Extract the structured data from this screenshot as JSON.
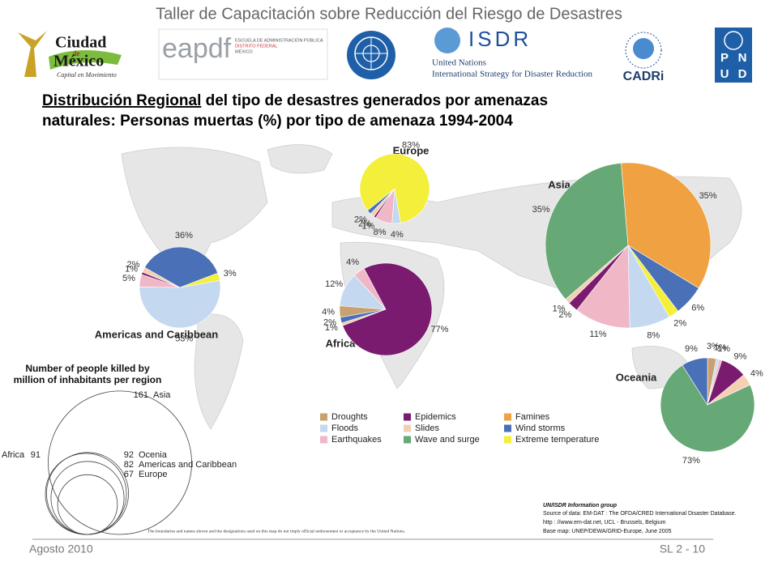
{
  "header": {
    "workshop": "Taller de Capacitación sobre Reducción del Riesgo de Desastres",
    "logos": {
      "ciudad": "Ciudad",
      "de": "de",
      "mexico": "México",
      "capital": "Capital en Movimiento",
      "eapdf": "eapdf",
      "eapdf_line1": "ESCUELA DE ADMINISTRACIÓN PÚBLICA",
      "eapdf_line2": "DISTRITO FEDERAL",
      "eapdf_line3": "MÉXICO",
      "isdr": "ISDR",
      "un": "United Nations",
      "isdr_full": "International Strategy for Disaster Reduction",
      "cadri": "CADRi",
      "cadri_ring": "CAPACITY FOR DISASTER REDUCTION INITIATIVE",
      "pnud": [
        "P",
        "N",
        "U",
        "D"
      ]
    },
    "title_underlined": "Distribución Regional",
    "title_rest": " del tipo de desastres generados por amenazas",
    "title_line2": "naturales: Personas muertas (%) por tipo de amenaza 1994-2004"
  },
  "legend": {
    "categories": [
      "Droughts",
      "Floods",
      "Earthquakes",
      "Epidemics",
      "Slides",
      "Wave and surge",
      "Famines",
      "Wind storms",
      "Extreme temperature"
    ],
    "colors": [
      "#c9a06f",
      "#c4d9f0",
      "#f0b7c6",
      "#7a1b6f",
      "#f4cfb0",
      "#66a876",
      "#f0a242",
      "#4a70b8",
      "#f4ef3a"
    ]
  },
  "chart_data": [
    {
      "type": "pie",
      "title": "Europe",
      "values": [
        null,
        4,
        8,
        1,
        2,
        null,
        null,
        2,
        83
      ],
      "value_labels": [
        null,
        "4%",
        "8%",
        "1%",
        "2%",
        null,
        null,
        "2%",
        "83%"
      ]
    },
    {
      "type": "pie",
      "title": "Asia",
      "values": [
        null,
        8,
        11,
        2,
        1,
        35,
        35,
        6,
        2
      ],
      "value_labels": [
        null,
        "8%",
        "11%",
        "2%",
        "1%",
        "35%",
        "35%",
        "6%",
        "2%"
      ]
    },
    {
      "type": "pie",
      "title": "Americas and Caribbean",
      "values": [
        null,
        53,
        5,
        1,
        2,
        null,
        null,
        36,
        3
      ],
      "value_labels": [
        null,
        "53%",
        "5%",
        "1%",
        "2%",
        null,
        null,
        "36%",
        "3%"
      ]
    },
    {
      "type": "pie",
      "title": "Africa",
      "values": [
        4,
        12,
        4,
        77,
        1,
        null,
        null,
        2,
        null
      ],
      "value_labels": [
        "4%",
        "12%",
        "4%",
        "77%",
        "1%",
        null,
        null,
        "2%",
        null
      ]
    },
    {
      "type": "pie",
      "title": "Oceania",
      "values": [
        3,
        1,
        1,
        9,
        4,
        73,
        null,
        9,
        null
      ],
      "value_labels": [
        "3%",
        "1%",
        "1%",
        "9%",
        "4%",
        "73%",
        null,
        "9%",
        null
      ]
    },
    {
      "type": "circles",
      "title_line1": "Number of people killed by",
      "title_line2": "million of inhabitants per region",
      "categories": [
        "Asia",
        "Ocenia",
        "Africa",
        "Americas and Caribbean",
        "Europe"
      ],
      "values": [
        161,
        92,
        91,
        82,
        67
      ]
    }
  ],
  "map_note": "The boundaries and names shown and the designations used on this map do not imply official endorsement or acceptance by the United Nations.",
  "source": {
    "group": "UN/ISDR Information group",
    "line1": "Source of data: EM-DAT : The OFDA/CRED International Disaster Database.",
    "line2": "http : //www.em-dat.net, UCL - Brussels, Belgium",
    "line3": "Base map: UNEP/DEWA/GRID-Europe, June 2005"
  },
  "footer": {
    "date": "Agosto 2010",
    "slide": "SL 2 - 10"
  }
}
